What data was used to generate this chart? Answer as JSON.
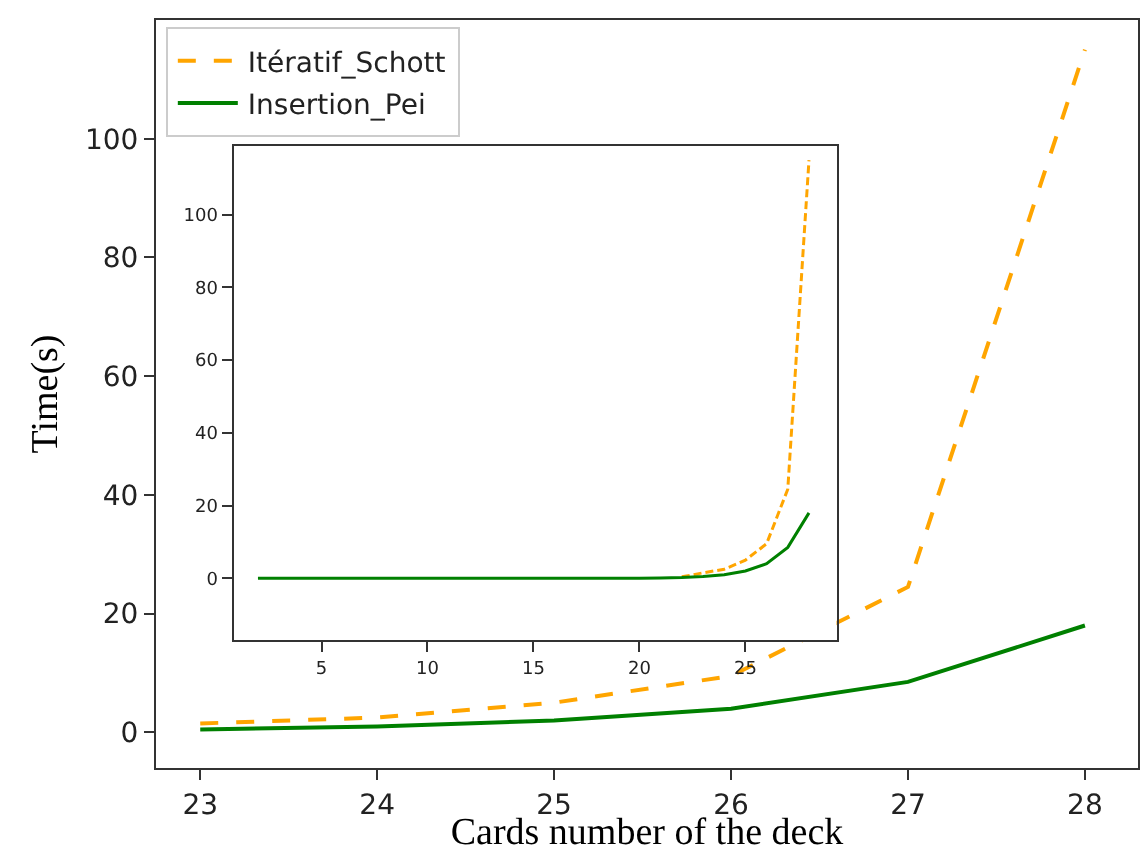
{
  "chart_data": [
    {
      "type": "line",
      "xlabel": "Cards number of the deck",
      "ylabel": "Time(s)",
      "x": [
        23,
        24,
        25,
        26,
        27,
        28
      ],
      "xlim": [
        22.75,
        28.3
      ],
      "ylim": [
        -6,
        120
      ],
      "xticks": [
        23,
        24,
        25,
        26,
        27,
        28
      ],
      "yticks": [
        0,
        20,
        40,
        60,
        80,
        100
      ],
      "legend": "top left",
      "series": [
        {
          "name": "Itératif_Schott",
          "color": "#ffa500",
          "line_style": "dashed",
          "values": [
            1.5,
            2.5,
            5,
            9.5,
            24.5,
            115
          ]
        },
        {
          "name": "Insertion_Pei",
          "color": "#008000",
          "line_style": "solid",
          "values": [
            0.5,
            1,
            2,
            4,
            8.5,
            18
          ]
        }
      ]
    },
    {
      "type": "line",
      "x": [
        2,
        3,
        4,
        5,
        6,
        7,
        8,
        9,
        10,
        11,
        12,
        13,
        14,
        15,
        16,
        17,
        18,
        19,
        20,
        21,
        22,
        23,
        24,
        25,
        26,
        27,
        28
      ],
      "xlim": [
        0.85,
        29.3
      ],
      "ylim": [
        -17,
        119
      ],
      "xticks": [
        5,
        10,
        15,
        20,
        25
      ],
      "yticks": [
        0,
        20,
        40,
        60,
        80,
        100
      ],
      "legend": false,
      "series": [
        {
          "color": "#ffa500",
          "line_style": "dashed",
          "values": [
            null,
            null,
            null,
            null,
            null,
            null,
            null,
            null,
            null,
            null,
            null,
            null,
            null,
            null,
            null,
            null,
            null,
            null,
            null,
            null,
            0.4,
            1.5,
            2.5,
            5,
            9.5,
            24.5,
            115
          ]
        },
        {
          "color": "#008000",
          "line_style": "solid",
          "values": [
            0,
            0,
            0,
            0,
            0,
            0,
            0,
            0,
            0,
            0,
            0,
            0,
            0,
            0,
            0,
            0,
            0,
            0,
            0,
            0.1,
            0.2,
            0.5,
            1,
            2,
            4,
            8.5,
            18
          ]
        }
      ]
    }
  ]
}
